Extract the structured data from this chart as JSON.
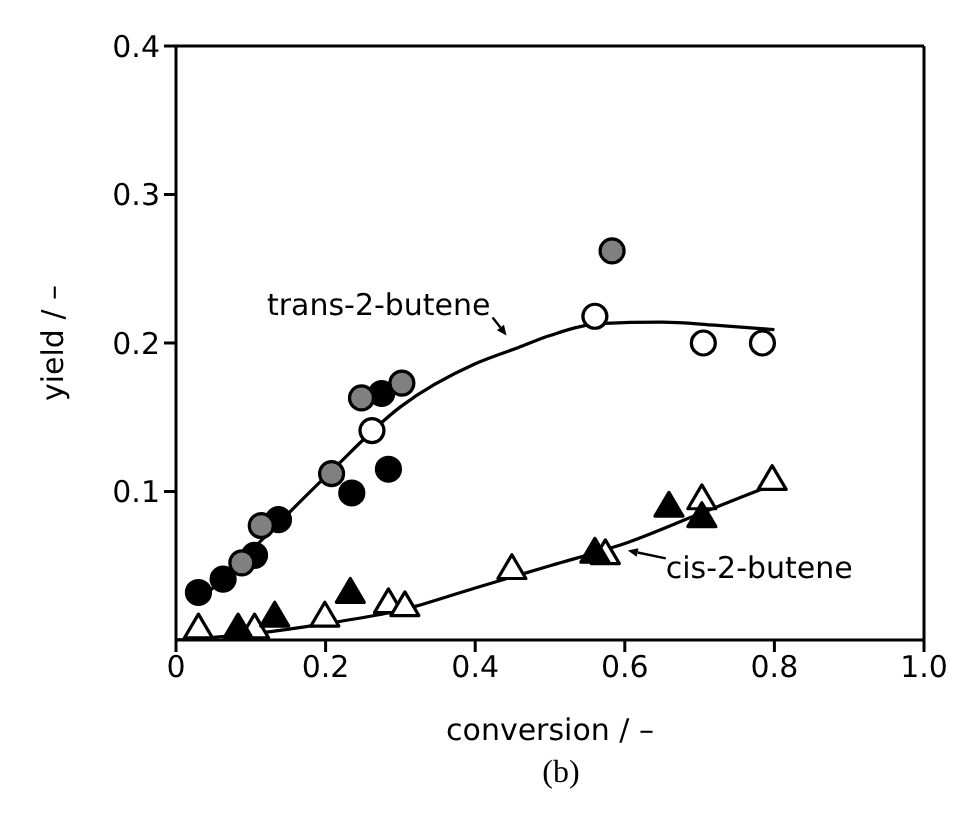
{
  "chart_data": {
    "type": "scatter",
    "xlabel": "conversion / –",
    "ylabel": "yield / –",
    "xlim": [
      0,
      1
    ],
    "xticks": [
      0,
      0.2,
      0.4,
      0.6,
      0.8,
      {
        "value": 1,
        "label": "1.0"
      }
    ],
    "ylim": [
      0,
      0.4
    ],
    "yticks": [
      0.1,
      0.2,
      0.3,
      0.4
    ],
    "series": [
      {
        "marker": "circle",
        "color": "#ffffff",
        "x": [
          0.262,
          0.56,
          0.705,
          0.784
        ],
        "values": [
          0.141,
          0.218,
          0.2,
          0.2
        ]
      },
      {
        "marker": "circle",
        "color": "#000000",
        "x": [
          0.03,
          0.063,
          0.105,
          0.137,
          0.235,
          0.275,
          0.284
        ],
        "values": [
          0.032,
          0.041,
          0.057,
          0.081,
          0.099,
          0.166,
          0.115
        ]
      },
      {
        "marker": "circle",
        "color": "#808080",
        "x": [
          0.088,
          0.114,
          0.208,
          0.248,
          0.302,
          0.583
        ],
        "values": [
          0.052,
          0.077,
          0.112,
          0.163,
          0.173,
          0.262
        ]
      },
      {
        "marker": "triangle",
        "color": "#ffffff",
        "x": [
          0.03,
          0.105,
          0.199,
          0.284,
          0.306,
          0.449,
          0.574,
          0.703,
          0.797
        ],
        "values": [
          0.008,
          0.008,
          0.016,
          0.025,
          0.023,
          0.048,
          0.058,
          0.095,
          0.108
        ]
      },
      {
        "marker": "triangle",
        "color": "#000000",
        "x": [
          0.083,
          0.132,
          0.233,
          0.56,
          0.659,
          0.703
        ],
        "values": [
          0.008,
          0.016,
          0.032,
          0.059,
          0.09,
          0.083
        ]
      },
      {
        "type": "line",
        "marker": "none",
        "color": "#000000",
        "x": [
          0.035,
          0.1,
          0.2,
          0.3,
          0.4,
          0.458,
          0.5,
          0.565,
          0.65,
          0.72,
          0.8
        ],
        "values": [
          0.028,
          0.06,
          0.11,
          0.157,
          0.186,
          0.197,
          0.205,
          0.213,
          0.214,
          0.212,
          0.209
        ]
      },
      {
        "type": "line",
        "marker": "none",
        "color": "#000000",
        "x": [
          0,
          0.1,
          0.2,
          0.3,
          0.4,
          0.5,
          0.6,
          0.7,
          0.8
        ],
        "values": [
          0,
          0.004,
          0.011,
          0.02,
          0.035,
          0.05,
          0.065,
          0.085,
          0.105
        ]
      }
    ],
    "annotations": [
      {
        "text": "trans-2-butene",
        "x": 0.458,
        "y": 0.197
      },
      {
        "text": "cis-2-butene",
        "x": 0.596,
        "y": 0.063
      },
      "(b)"
    ]
  }
}
